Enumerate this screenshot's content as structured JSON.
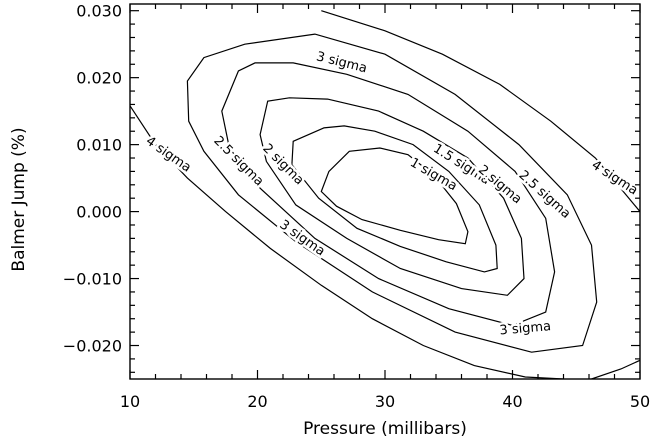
{
  "chart_data": {
    "type": "line",
    "title": "",
    "xlabel": "Pressure (millibars)",
    "ylabel": "Balmer Jump (%)",
    "xlim": [
      10,
      50
    ],
    "ylim": [
      -0.025,
      0.031
    ],
    "x_ticks": [
      10,
      20,
      30,
      40,
      50
    ],
    "x_tick_labels": [
      "10",
      "20",
      "30",
      "40",
      "50"
    ],
    "y_ticks": [
      -0.02,
      -0.01,
      0.0,
      0.01,
      0.02,
      0.03
    ],
    "y_tick_labels": [
      "−0.020",
      "−0.010",
      "0.000",
      "0.010",
      "0.020",
      "0.030"
    ],
    "grid": false,
    "colors": {
      "line": "#000000",
      "background": "#ffffff"
    },
    "series": [
      {
        "name": "1 sigma",
        "closed": true,
        "x": [
          29.6,
          27.2,
          25.6,
          25.0,
          26.2,
          28.2,
          31.2,
          34.2,
          36.3,
          36.5,
          35.6,
          33.8,
          31.8
        ],
        "y": [
          0.0095,
          0.009,
          0.006,
          0.003,
          0.0008,
          -0.0012,
          -0.0028,
          -0.0042,
          -0.0048,
          -0.003,
          0.0012,
          0.0055,
          0.0085
        ]
      },
      {
        "name": "1.5 sigma",
        "closed": true,
        "x": [
          25.2,
          22.8,
          22.7,
          24.8,
          27.8,
          31.2,
          34.8,
          37.8,
          38.8,
          38.7,
          37.4,
          35.0,
          32.2,
          29.2,
          26.8
        ],
        "y": [
          0.0125,
          0.0105,
          0.007,
          0.002,
          -0.0025,
          -0.0052,
          -0.0075,
          -0.009,
          -0.0085,
          -0.005,
          0.001,
          0.006,
          0.01,
          0.012,
          0.0128
        ]
      },
      {
        "name": "2 sigma",
        "closed": true,
        "x": [
          20.8,
          20.2,
          20.7,
          23.0,
          27.0,
          31.2,
          36.0,
          39.6,
          40.9,
          40.7,
          39.3,
          36.5,
          33.0,
          29.5,
          25.5,
          22.5
        ],
        "y": [
          0.0165,
          0.0115,
          0.0075,
          0.001,
          -0.004,
          -0.0085,
          -0.0115,
          -0.0125,
          -0.01,
          -0.004,
          0.002,
          0.008,
          0.012,
          0.015,
          0.0168,
          0.017
        ]
      },
      {
        "name": "2.5 sigma",
        "closed": true,
        "x": [
          18.5,
          17.2,
          17.8,
          20.2,
          24.5,
          29.5,
          35.0,
          40.0,
          42.6,
          43.3,
          42.6,
          40.2,
          36.5,
          31.8,
          27.0,
          22.8,
          19.8
        ],
        "y": [
          0.021,
          0.015,
          0.0095,
          0.0035,
          -0.004,
          -0.01,
          -0.0145,
          -0.017,
          -0.015,
          -0.009,
          -0.001,
          0.006,
          0.012,
          0.0175,
          0.0205,
          0.0222,
          0.0222
        ]
      },
      {
        "name": "3 sigma",
        "closed": true,
        "x": [
          14.5,
          14.6,
          15.8,
          18.5,
          23.0,
          29.0,
          35.5,
          41.5,
          45.5,
          46.6,
          46.2,
          44.3,
          40.5,
          35.5,
          30.0,
          24.5,
          19.0,
          15.8
        ],
        "y": [
          0.0195,
          0.0135,
          0.009,
          0.0025,
          -0.0045,
          -0.012,
          -0.018,
          -0.021,
          -0.02,
          -0.0135,
          -0.005,
          0.0025,
          0.01,
          0.0175,
          0.0235,
          0.0265,
          0.025,
          0.023
        ]
      },
      {
        "name": "4 sigma (lower)",
        "closed": false,
        "x": [
          10.0,
          12.0,
          14.5,
          17.5,
          21.0,
          25.0,
          29.0,
          33.0,
          37.0,
          41.0,
          44.0
        ],
        "y": [
          0.0158,
          0.01,
          0.005,
          0.0,
          -0.0055,
          -0.011,
          -0.016,
          -0.02,
          -0.023,
          -0.0247,
          -0.025
        ]
      },
      {
        "name": "4 sigma (upper right)",
        "closed": false,
        "x": [
          25.0,
          30.0,
          34.5,
          39.0,
          43.0,
          46.5,
          50.0
        ],
        "y": [
          0.03,
          0.027,
          0.0235,
          0.019,
          0.0135,
          0.008,
          0.0
        ]
      },
      {
        "name": "4 sigma (lower right)",
        "closed": false,
        "x": [
          46.2,
          48.5,
          50.0
        ],
        "y": [
          -0.025,
          -0.0235,
          -0.0222
        ]
      }
    ],
    "annotations": [
      {
        "text": "3 sigma",
        "x": 26.6,
        "y": 0.0222,
        "angle": 14
      },
      {
        "text": "1.5 sigma",
        "x": 36.0,
        "y": 0.007,
        "angle": 32
      },
      {
        "text": "1 sigma",
        "x": 33.8,
        "y": 0.0055,
        "angle": 30
      },
      {
        "text": "2 sigma",
        "x": 39.0,
        "y": 0.004,
        "angle": 40
      },
      {
        "text": "2.5 sigma",
        "x": 42.5,
        "y": 0.0025,
        "angle": 42
      },
      {
        "text": "4 sigma",
        "x": 48.0,
        "y": 0.005,
        "angle": 33
      },
      {
        "text": "4 sigma",
        "x": 13.0,
        "y": 0.0085,
        "angle": 35
      },
      {
        "text": "2.5 sigma",
        "x": 18.5,
        "y": 0.0075,
        "angle": 45
      },
      {
        "text": "2 sigma",
        "x": 22.0,
        "y": 0.007,
        "angle": 45
      },
      {
        "text": "3 sigma",
        "x": 23.5,
        "y": -0.004,
        "angle": 35
      },
      {
        "text": "3 sigma",
        "x": 41.0,
        "y": -0.0175,
        "angle": -5
      }
    ]
  }
}
